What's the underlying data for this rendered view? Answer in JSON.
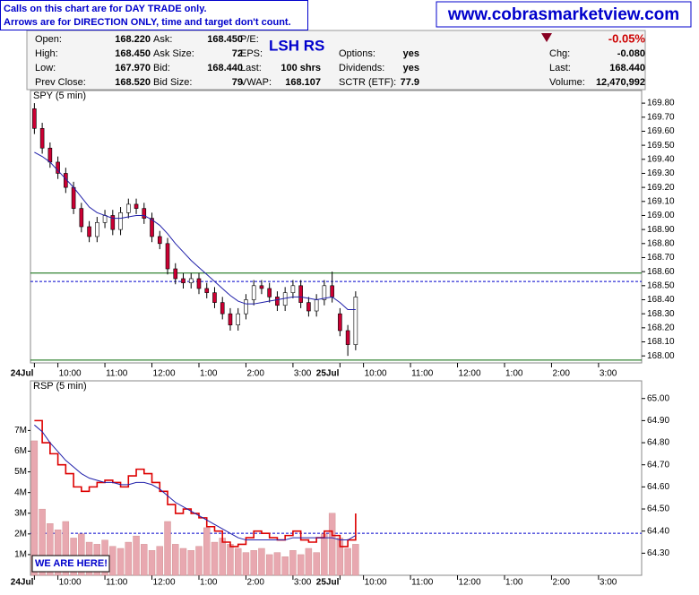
{
  "notice": {
    "lines": [
      "Calls on this chart are for DAY TRADE only.",
      "Arrows are for DIRECTION ONLY, time and target don't count."
    ]
  },
  "website": "www.cobrasmarketview.com",
  "quote": {
    "symbol": "LSH RS",
    "change_pct": "-0.05%",
    "columns": [
      [
        {
          "label": "Open:",
          "value": "168.220"
        },
        {
          "label": "High:",
          "value": "168.450"
        },
        {
          "label": "Low:",
          "value": "167.970"
        },
        {
          "label": "Prev Close:",
          "value": "168.520"
        }
      ],
      [
        {
          "label": "Ask:",
          "value": "168.450"
        },
        {
          "label": "Ask Size:",
          "value": "72"
        },
        {
          "label": "Bid:",
          "value": "168.440"
        },
        {
          "label": "Bid Size:",
          "value": "79"
        }
      ],
      [
        {
          "label": "P/E:"
        },
        {
          "label": "EPS:"
        },
        {
          "label": "Last:",
          "value": "100 shrs"
        },
        {
          "label": "VWAP:",
          "value": "168.107"
        }
      ],
      [
        {
          "label": "Options:",
          "value": "yes"
        },
        {
          "label": "Dividends:",
          "value": "yes"
        },
        {
          "label": "SCTR (ETF):",
          "value": "77.9"
        }
      ],
      [
        {
          "label": "Chg:",
          "value": "-0.080"
        },
        {
          "label": "Last:",
          "value": "168.440"
        },
        {
          "label": "Volume:",
          "value": "12,470,992"
        }
      ]
    ]
  },
  "chart_data": [
    {
      "type": "candlestick",
      "title": "SPY (5 min)",
      "x": [
        0,
        2,
        4,
        6,
        8,
        10,
        12,
        14,
        16,
        18,
        20,
        22,
        24,
        26,
        28,
        30,
        32,
        34,
        36,
        38,
        40,
        42,
        44,
        46,
        48,
        50,
        52,
        54,
        56,
        58,
        60,
        62,
        64,
        66,
        68,
        70,
        72,
        74,
        76,
        78,
        80,
        82
      ],
      "open": [
        169.76,
        169.62,
        169.48,
        169.38,
        169.3,
        169.2,
        169.05,
        168.92,
        168.85,
        168.95,
        169.0,
        168.9,
        169.02,
        169.08,
        169.05,
        168.98,
        168.85,
        168.8,
        168.62,
        168.55,
        168.52,
        168.55,
        168.48,
        168.45,
        168.38,
        168.3,
        168.22,
        168.3,
        168.4,
        168.5,
        168.48,
        168.42,
        168.36,
        168.45,
        168.5,
        168.38,
        168.32,
        168.4,
        168.5,
        168.3,
        168.18,
        168.08
      ],
      "high": [
        169.8,
        169.66,
        169.52,
        169.42,
        169.34,
        169.24,
        169.09,
        168.96,
        168.99,
        169.04,
        169.04,
        169.06,
        169.12,
        169.12,
        169.09,
        169.02,
        168.89,
        168.84,
        168.66,
        168.59,
        168.59,
        168.59,
        168.52,
        168.49,
        168.42,
        168.34,
        168.34,
        168.44,
        168.54,
        168.54,
        168.52,
        168.46,
        168.49,
        168.54,
        168.54,
        168.42,
        168.44,
        168.54,
        168.6,
        168.34,
        168.22,
        168.46
      ],
      "low": [
        169.58,
        169.44,
        169.34,
        169.26,
        169.16,
        169.01,
        168.88,
        168.81,
        168.81,
        168.91,
        168.86,
        168.86,
        168.98,
        169.01,
        168.94,
        168.81,
        168.76,
        168.58,
        168.51,
        168.48,
        168.48,
        168.44,
        168.41,
        168.34,
        168.26,
        168.18,
        168.18,
        168.26,
        168.36,
        168.44,
        168.38,
        168.32,
        168.32,
        168.41,
        168.34,
        168.28,
        168.28,
        168.36,
        168.38,
        168.14,
        168.0,
        168.04
      ],
      "close": [
        169.62,
        169.48,
        169.38,
        169.3,
        169.2,
        169.05,
        168.92,
        168.85,
        168.95,
        169.0,
        168.9,
        169.02,
        169.08,
        169.05,
        168.98,
        168.85,
        168.8,
        168.62,
        168.55,
        168.52,
        168.55,
        168.48,
        168.45,
        168.38,
        168.3,
        168.22,
        168.3,
        168.4,
        168.5,
        168.48,
        168.42,
        168.36,
        168.45,
        168.5,
        168.38,
        168.32,
        168.4,
        168.5,
        168.42,
        168.18,
        168.08,
        168.42
      ],
      "ma": [
        169.45,
        169.42,
        169.38,
        169.32,
        169.26,
        169.2,
        169.13,
        169.06,
        169.02,
        169.0,
        168.98,
        168.98,
        168.99,
        169.0,
        169.0,
        168.97,
        168.93,
        168.87,
        168.8,
        168.74,
        168.68,
        168.63,
        168.58,
        168.53,
        168.48,
        168.43,
        168.39,
        168.37,
        168.37,
        168.38,
        168.39,
        168.4,
        168.41,
        168.42,
        168.42,
        168.41,
        168.4,
        168.41,
        168.42,
        168.38,
        168.33,
        168.33
      ],
      "up_color": "#ffffff",
      "down_color": "#cc0033",
      "ma_color": "#2020aa",
      "hlines": [
        {
          "value": 168.59,
          "color": "#006600"
        },
        {
          "value": 168.53,
          "color": "#0000cc",
          "dashed": true
        },
        {
          "value": 167.97,
          "color": "#006600"
        }
      ],
      "xlim": [
        -1,
        155
      ],
      "xticks": [
        {
          "value": 0,
          "label": "24Jul"
        },
        {
          "value": 6,
          "label": "10:00"
        },
        {
          "value": 18,
          "label": "11:00"
        },
        {
          "value": 30,
          "label": "12:00"
        },
        {
          "value": 42,
          "label": "1:00"
        },
        {
          "value": 54,
          "label": "2:00"
        },
        {
          "value": 66,
          "label": "3:00"
        },
        {
          "value": 78,
          "label": "25Jul"
        },
        {
          "value": 84,
          "label": "10:00"
        },
        {
          "value": 96,
          "label": "11:00"
        },
        {
          "value": 108,
          "label": "12:00"
        },
        {
          "value": 120,
          "label": "1:00"
        },
        {
          "value": 132,
          "label": "2:00"
        },
        {
          "value": 144,
          "label": "3:00"
        }
      ],
      "ylim": [
        167.95,
        169.89
      ],
      "yticks": [
        {
          "value": 168.0,
          "label": "168.00"
        },
        {
          "value": 168.1,
          "label": "168.10"
        },
        {
          "value": 168.2,
          "label": "168.20"
        },
        {
          "value": 168.3,
          "label": "168.30"
        },
        {
          "value": 168.4,
          "label": "168.40"
        },
        {
          "value": 168.5,
          "label": "168.50"
        },
        {
          "value": 168.6,
          "label": "168.60"
        },
        {
          "value": 168.7,
          "label": "168.70"
        },
        {
          "value": 168.8,
          "label": "168.80"
        },
        {
          "value": 168.9,
          "label": "168.90"
        },
        {
          "value": 169.0,
          "label": "169.00"
        },
        {
          "value": 169.1,
          "label": "169.10"
        },
        {
          "value": 169.2,
          "label": "169.20"
        },
        {
          "value": 169.3,
          "label": "169.30"
        },
        {
          "value": 169.4,
          "label": "169.40"
        },
        {
          "value": 169.5,
          "label": "169.50"
        },
        {
          "value": 169.6,
          "label": "169.60"
        },
        {
          "value": 169.7,
          "label": "169.70"
        },
        {
          "value": 169.8,
          "label": "169.80"
        }
      ]
    },
    {
      "type": "price-volume",
      "title": "RSP (5 min)",
      "annotation": "WE ARE HERE!",
      "x": [
        0,
        2,
        4,
        6,
        8,
        10,
        12,
        14,
        16,
        18,
        20,
        22,
        24,
        26,
        28,
        30,
        32,
        34,
        36,
        38,
        40,
        42,
        44,
        46,
        48,
        50,
        52,
        54,
        56,
        58,
        60,
        62,
        64,
        66,
        68,
        70,
        72,
        74,
        76,
        78,
        80,
        82
      ],
      "series": [
        {
          "values": [
            64.9,
            64.8,
            64.75,
            64.7,
            64.66,
            64.6,
            64.58,
            64.6,
            64.62,
            64.63,
            64.62,
            64.6,
            64.65,
            64.68,
            64.66,
            64.62,
            64.58,
            64.52,
            64.48,
            64.5,
            64.48,
            64.46,
            64.42,
            64.4,
            64.35,
            64.33,
            64.34,
            64.37,
            64.4,
            64.39,
            64.37,
            64.36,
            64.38,
            64.4,
            64.36,
            64.35,
            64.37,
            64.4,
            64.38,
            64.33,
            64.36,
            64.48
          ],
          "color": "#dd0000"
        },
        {
          "values": [
            64.88,
            64.85,
            64.8,
            64.76,
            64.72,
            64.69,
            64.66,
            64.64,
            64.63,
            64.62,
            64.62,
            64.61,
            64.61,
            64.62,
            64.62,
            64.61,
            64.59,
            64.56,
            64.53,
            64.51,
            64.49,
            64.47,
            64.45,
            64.43,
            64.41,
            64.39,
            64.37,
            64.36,
            64.36,
            64.36,
            64.36,
            64.36,
            64.36,
            64.37,
            64.37,
            64.37,
            64.37,
            64.37,
            64.37,
            64.36,
            64.36,
            64.38
          ],
          "color": "#2020aa"
        },
        {
          "values": [
            6500000,
            3200000,
            2500000,
            2200000,
            2600000,
            1800000,
            2000000,
            1600000,
            1500000,
            1700000,
            1400000,
            1300000,
            1600000,
            1900000,
            1500000,
            1200000,
            1400000,
            2600000,
            1500000,
            1300000,
            1200000,
            1400000,
            2300000,
            1600000,
            1800000,
            1500000,
            1300000,
            1100000,
            1200000,
            1300000,
            1000000,
            1100000,
            900000,
            1200000,
            1000000,
            1300000,
            1100000,
            2000000,
            3000000,
            1800000,
            1300000,
            1500000
          ],
          "color": "#e8a8b0",
          "axis": "y2"
        }
      ],
      "hlines": [
        {
          "value": 64.39,
          "color": "#0000cc",
          "dashed": true
        }
      ],
      "xlim": [
        -1,
        155
      ],
      "xticks": [
        {
          "value": 0,
          "label": "24Jul"
        },
        {
          "value": 6,
          "label": "10:00"
        },
        {
          "value": 18,
          "label": "11:00"
        },
        {
          "value": 30,
          "label": "12:00"
        },
        {
          "value": 42,
          "label": "1:00"
        },
        {
          "value": 54,
          "label": "2:00"
        },
        {
          "value": 66,
          "label": "3:00"
        },
        {
          "value": 78,
          "label": "25Jul"
        },
        {
          "value": 84,
          "label": "10:00"
        },
        {
          "value": 96,
          "label": "11:00"
        },
        {
          "value": 108,
          "label": "12:00"
        },
        {
          "value": 120,
          "label": "1:00"
        },
        {
          "value": 132,
          "label": "2:00"
        },
        {
          "value": 144,
          "label": "3:00"
        }
      ],
      "ylim": [
        64.2,
        65.08
      ],
      "yticks": [
        {
          "value": 64.3,
          "label": "64.30"
        },
        {
          "value": 64.4,
          "label": "64.40"
        },
        {
          "value": 64.5,
          "label": "64.50"
        },
        {
          "value": 64.6,
          "label": "64.60"
        },
        {
          "value": 64.7,
          "label": "64.70"
        },
        {
          "value": 64.8,
          "label": "64.80"
        },
        {
          "value": 64.9,
          "label": "64.90"
        },
        {
          "value": 65.0,
          "label": "65.00"
        }
      ],
      "y2lim": [
        0,
        9400000
      ],
      "y2ticks": [
        {
          "value": 1000000,
          "label": "1M"
        },
        {
          "value": 2000000,
          "label": "2M"
        },
        {
          "value": 3000000,
          "label": "3M"
        },
        {
          "value": 4000000,
          "label": "4M"
        },
        {
          "value": 5000000,
          "label": "5M"
        },
        {
          "value": 6000000,
          "label": "6M"
        },
        {
          "value": 7000000,
          "label": "7M"
        }
      ]
    }
  ]
}
